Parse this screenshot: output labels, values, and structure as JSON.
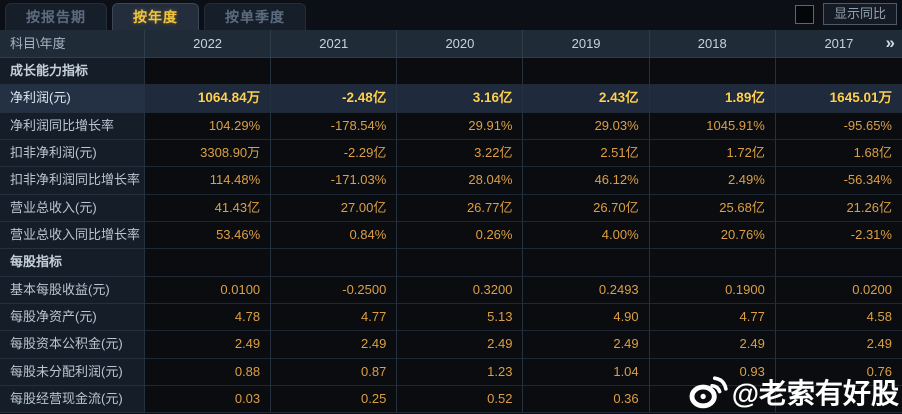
{
  "tabs": [
    {
      "label": "按报告期",
      "active": false
    },
    {
      "label": "按年度",
      "active": true
    },
    {
      "label": "按单季度",
      "active": false
    }
  ],
  "controls": {
    "show_yoy_label": "显示同比",
    "checkbox_checked": false
  },
  "table": {
    "corner_label": "科目\\年度",
    "years": [
      "2022",
      "2021",
      "2020",
      "2019",
      "2018",
      "2017"
    ],
    "more_icon": "»",
    "rows": [
      {
        "type": "section",
        "label": "成长能力指标",
        "values": [
          "",
          "",
          "",
          "",
          "",
          ""
        ]
      },
      {
        "type": "data",
        "highlight": true,
        "label": "净利润(元)",
        "values": [
          "1064.84万",
          "-2.48亿",
          "3.16亿",
          "2.43亿",
          "1.89亿",
          "1645.01万"
        ]
      },
      {
        "type": "data",
        "label": "净利润同比增长率",
        "values": [
          "104.29%",
          "-178.54%",
          "29.91%",
          "29.03%",
          "1045.91%",
          "-95.65%"
        ]
      },
      {
        "type": "data",
        "label": "扣非净利润(元)",
        "values": [
          "3308.90万",
          "-2.29亿",
          "3.22亿",
          "2.51亿",
          "1.72亿",
          "1.68亿"
        ]
      },
      {
        "type": "data",
        "label": "扣非净利润同比增长率",
        "values": [
          "114.48%",
          "-171.03%",
          "28.04%",
          "46.12%",
          "2.49%",
          "-56.34%"
        ]
      },
      {
        "type": "data",
        "label": "营业总收入(元)",
        "values": [
          "41.43亿",
          "27.00亿",
          "26.77亿",
          "26.70亿",
          "25.68亿",
          "21.26亿"
        ]
      },
      {
        "type": "data",
        "label": "营业总收入同比增长率",
        "values": [
          "53.46%",
          "0.84%",
          "0.26%",
          "4.00%",
          "20.76%",
          "-2.31%"
        ]
      },
      {
        "type": "section",
        "label": "每股指标",
        "values": [
          "",
          "",
          "",
          "",
          "",
          ""
        ]
      },
      {
        "type": "data",
        "label": "基本每股收益(元)",
        "values": [
          "0.0100",
          "-0.2500",
          "0.3200",
          "0.2493",
          "0.1900",
          "0.0200"
        ]
      },
      {
        "type": "data",
        "label": "每股净资产(元)",
        "values": [
          "4.78",
          "4.77",
          "5.13",
          "4.90",
          "4.77",
          "4.58"
        ]
      },
      {
        "type": "data",
        "label": "每股资本公积金(元)",
        "values": [
          "2.49",
          "2.49",
          "2.49",
          "2.49",
          "2.49",
          "2.49"
        ]
      },
      {
        "type": "data",
        "label": "每股未分配利润(元)",
        "values": [
          "0.88",
          "0.87",
          "1.23",
          "1.04",
          "0.93",
          "0.76"
        ]
      },
      {
        "type": "data",
        "label": "每股经营现金流(元)",
        "values": [
          "0.03",
          "0.25",
          "0.52",
          "0.36",
          "",
          ""
        ]
      }
    ]
  },
  "watermark": {
    "icon": "weibo-icon",
    "handle": "@老索有好股"
  },
  "colors": {
    "background": "#0c1016",
    "accent_gold": "#f3c53d",
    "value_orange": "#dc9f45",
    "highlight_value": "#ffd152",
    "watermark": "#ffffff"
  }
}
